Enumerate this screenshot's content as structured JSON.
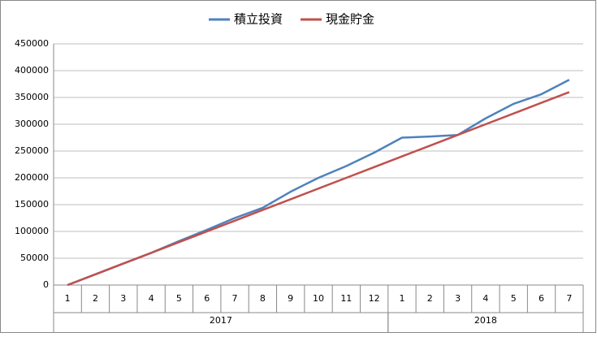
{
  "chart_data": {
    "type": "line",
    "category_groups": [
      {
        "name": "2017",
        "categories": [
          "1",
          "2",
          "3",
          "4",
          "5",
          "6",
          "7",
          "8",
          "9",
          "10",
          "11",
          "12"
        ]
      },
      {
        "name": "2018",
        "categories": [
          "1",
          "2",
          "3",
          "4",
          "5",
          "6",
          "7"
        ]
      }
    ],
    "series": [
      {
        "name": "積立投資",
        "color": "#4f81bd",
        "values": [
          0,
          20000,
          40000,
          60000,
          82000,
          103000,
          125000,
          144000,
          174000,
          200000,
          222000,
          247000,
          275000,
          277000,
          280000,
          311000,
          338000,
          356000,
          383000
        ]
      },
      {
        "name": "現金貯金",
        "color": "#c0504d",
        "values": [
          0,
          20000,
          40000,
          60000,
          80000,
          100000,
          120000,
          140000,
          160000,
          180000,
          200000,
          220000,
          240000,
          260000,
          280000,
          300000,
          320000,
          340000,
          360000
        ]
      }
    ],
    "ylim": [
      0,
      450000
    ],
    "yticks": [
      0,
      50000,
      100000,
      150000,
      200000,
      250000,
      300000,
      350000,
      400000,
      450000
    ],
    "grid": true,
    "legend": "top"
  }
}
